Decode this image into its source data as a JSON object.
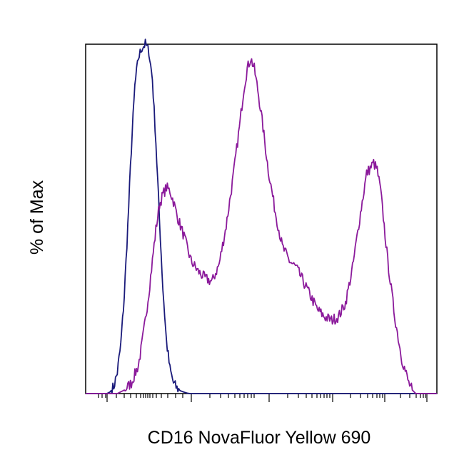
{
  "chart_data": {
    "type": "area",
    "title": "",
    "xlabel": "CD16 NovaFluor Yellow 690",
    "ylabel": "% of Max",
    "x_scale": "biexponential",
    "xlim": [
      0,
      100
    ],
    "ylim": [
      0,
      100
    ],
    "grid": false,
    "legend": "none",
    "series": [
      {
        "color": "#1a1a7a",
        "x": [
          6,
          7,
          8,
          9,
          10,
          11,
          12,
          13,
          14,
          15,
          16,
          17,
          18,
          19,
          20,
          21,
          22,
          23,
          24,
          25,
          26,
          27,
          28,
          29,
          30
        ],
        "values": [
          0,
          0.5,
          2,
          6,
          14,
          28,
          48,
          70,
          88,
          96,
          99,
          100,
          98,
          90,
          72,
          50,
          30,
          15,
          7,
          3,
          1.5,
          0.8,
          0.4,
          0.1,
          0
        ]
      },
      {
        "color": "#8b1a9b",
        "x": [
          9,
          11,
          13,
          15,
          16,
          17,
          18,
          19,
          20,
          21,
          22,
          23,
          24,
          25,
          26,
          28,
          30,
          32,
          34,
          36,
          38,
          40,
          42,
          44,
          45,
          46,
          47,
          48,
          49,
          50,
          51,
          52,
          54,
          56,
          58,
          60,
          62,
          64,
          66,
          68,
          70,
          72,
          74,
          76,
          78,
          80,
          82,
          83,
          84,
          85,
          86,
          88,
          90,
          92,
          93,
          94
        ],
        "values": [
          0,
          1,
          3,
          8,
          14,
          21,
          29,
          38,
          47,
          54,
          57,
          59,
          58,
          55,
          51,
          45,
          38,
          35,
          33,
          32,
          37,
          48,
          62,
          78,
          87,
          93,
          96,
          93,
          87,
          80,
          72,
          64,
          52,
          42,
          38,
          36,
          32,
          28,
          24,
          22,
          21,
          22,
          26,
          36,
          50,
          63,
          66,
          64,
          58,
          48,
          38,
          22,
          10,
          3,
          1,
          0
        ]
      }
    ]
  }
}
